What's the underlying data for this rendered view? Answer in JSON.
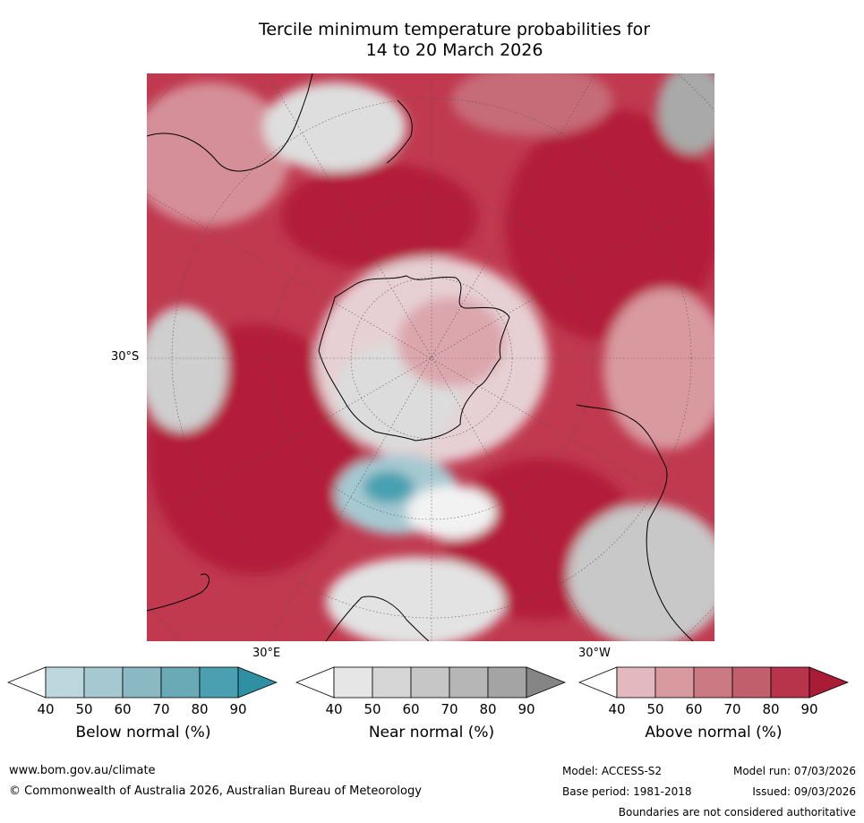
{
  "title": {
    "line1": "Tercile minimum temperature probabilities for",
    "line2": "14 to 20 March 2026"
  },
  "axis_labels": {
    "lat": "30°S",
    "lon_east": "30°E",
    "lon_west": "30°W"
  },
  "colorbars": [
    {
      "title": "Below normal (%)",
      "ticks": [
        "40",
        "50",
        "60",
        "70",
        "80",
        "90"
      ],
      "colors": [
        "#ffffff",
        "#bdd7de",
        "#a6c9d1",
        "#8ab8c3",
        "#6aa9b6",
        "#4aa0b1",
        "#2f8fa3"
      ]
    },
    {
      "title": "Near normal (%)",
      "ticks": [
        "40",
        "50",
        "60",
        "70",
        "80",
        "90"
      ],
      "colors": [
        "#ffffff",
        "#e6e6e6",
        "#d6d6d6",
        "#c6c6c6",
        "#b6b6b6",
        "#a4a4a4",
        "#858585"
      ]
    },
    {
      "title": "Above normal (%)",
      "ticks": [
        "40",
        "50",
        "60",
        "70",
        "80",
        "90"
      ],
      "colors": [
        "#ffffff",
        "#e3b9bf",
        "#d8999f",
        "#cb7a83",
        "#c25f6c",
        "#b8344b",
        "#aa1b36"
      ]
    }
  ],
  "footer": {
    "website": "www.bom.gov.au/climate",
    "copyright": "© Commonwealth of Australia 2026, Australian Bureau of Meteorology",
    "model": "Model: ACCESS-S2",
    "model_run": "Model run: 07/03/2026",
    "base_period": "Base period: 1981-2018",
    "issued": "Issued: 09/03/2026",
    "disclaimer": "Boundaries are not considered authoritative"
  }
}
